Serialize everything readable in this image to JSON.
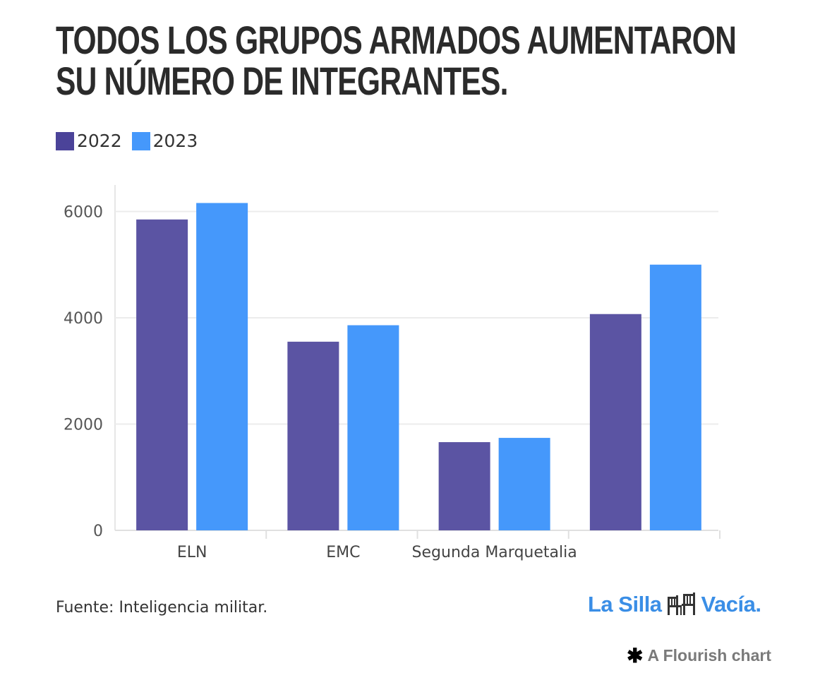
{
  "title": "TODOS LOS GRUPOS ARMADOS AUMENTARON SU NÚMERO DE INTEGRANTES.",
  "source": "Fuente: Inteligencia militar.",
  "logo": {
    "text_left": "La Silla",
    "text_right": "Vacía.",
    "icon": "chairs-icon"
  },
  "credit": {
    "icon": "flourish-star-icon",
    "text": "A Flourish chart"
  },
  "colors": {
    "2022": "#5b54a3",
    "2023": "#4598fb"
  },
  "chart_data": {
    "type": "bar",
    "title": "TODOS LOS GRUPOS ARMADOS AUMENTARON SU NÚMERO DE INTEGRANTES.",
    "categories": [
      "ELN",
      "EMC",
      "Segunda Marquetalia",
      ""
    ],
    "series": [
      {
        "name": "2022",
        "values": [
          5850,
          3550,
          1660,
          4070
        ]
      },
      {
        "name": "2023",
        "values": [
          6160,
          3860,
          1740,
          5000
        ]
      }
    ],
    "ylim": [
      0,
      6600
    ],
    "yticks": [
      "0",
      "2000",
      "4000",
      "6000"
    ],
    "grid": true,
    "legend": "top-left",
    "xlabel": "",
    "ylabel": ""
  }
}
